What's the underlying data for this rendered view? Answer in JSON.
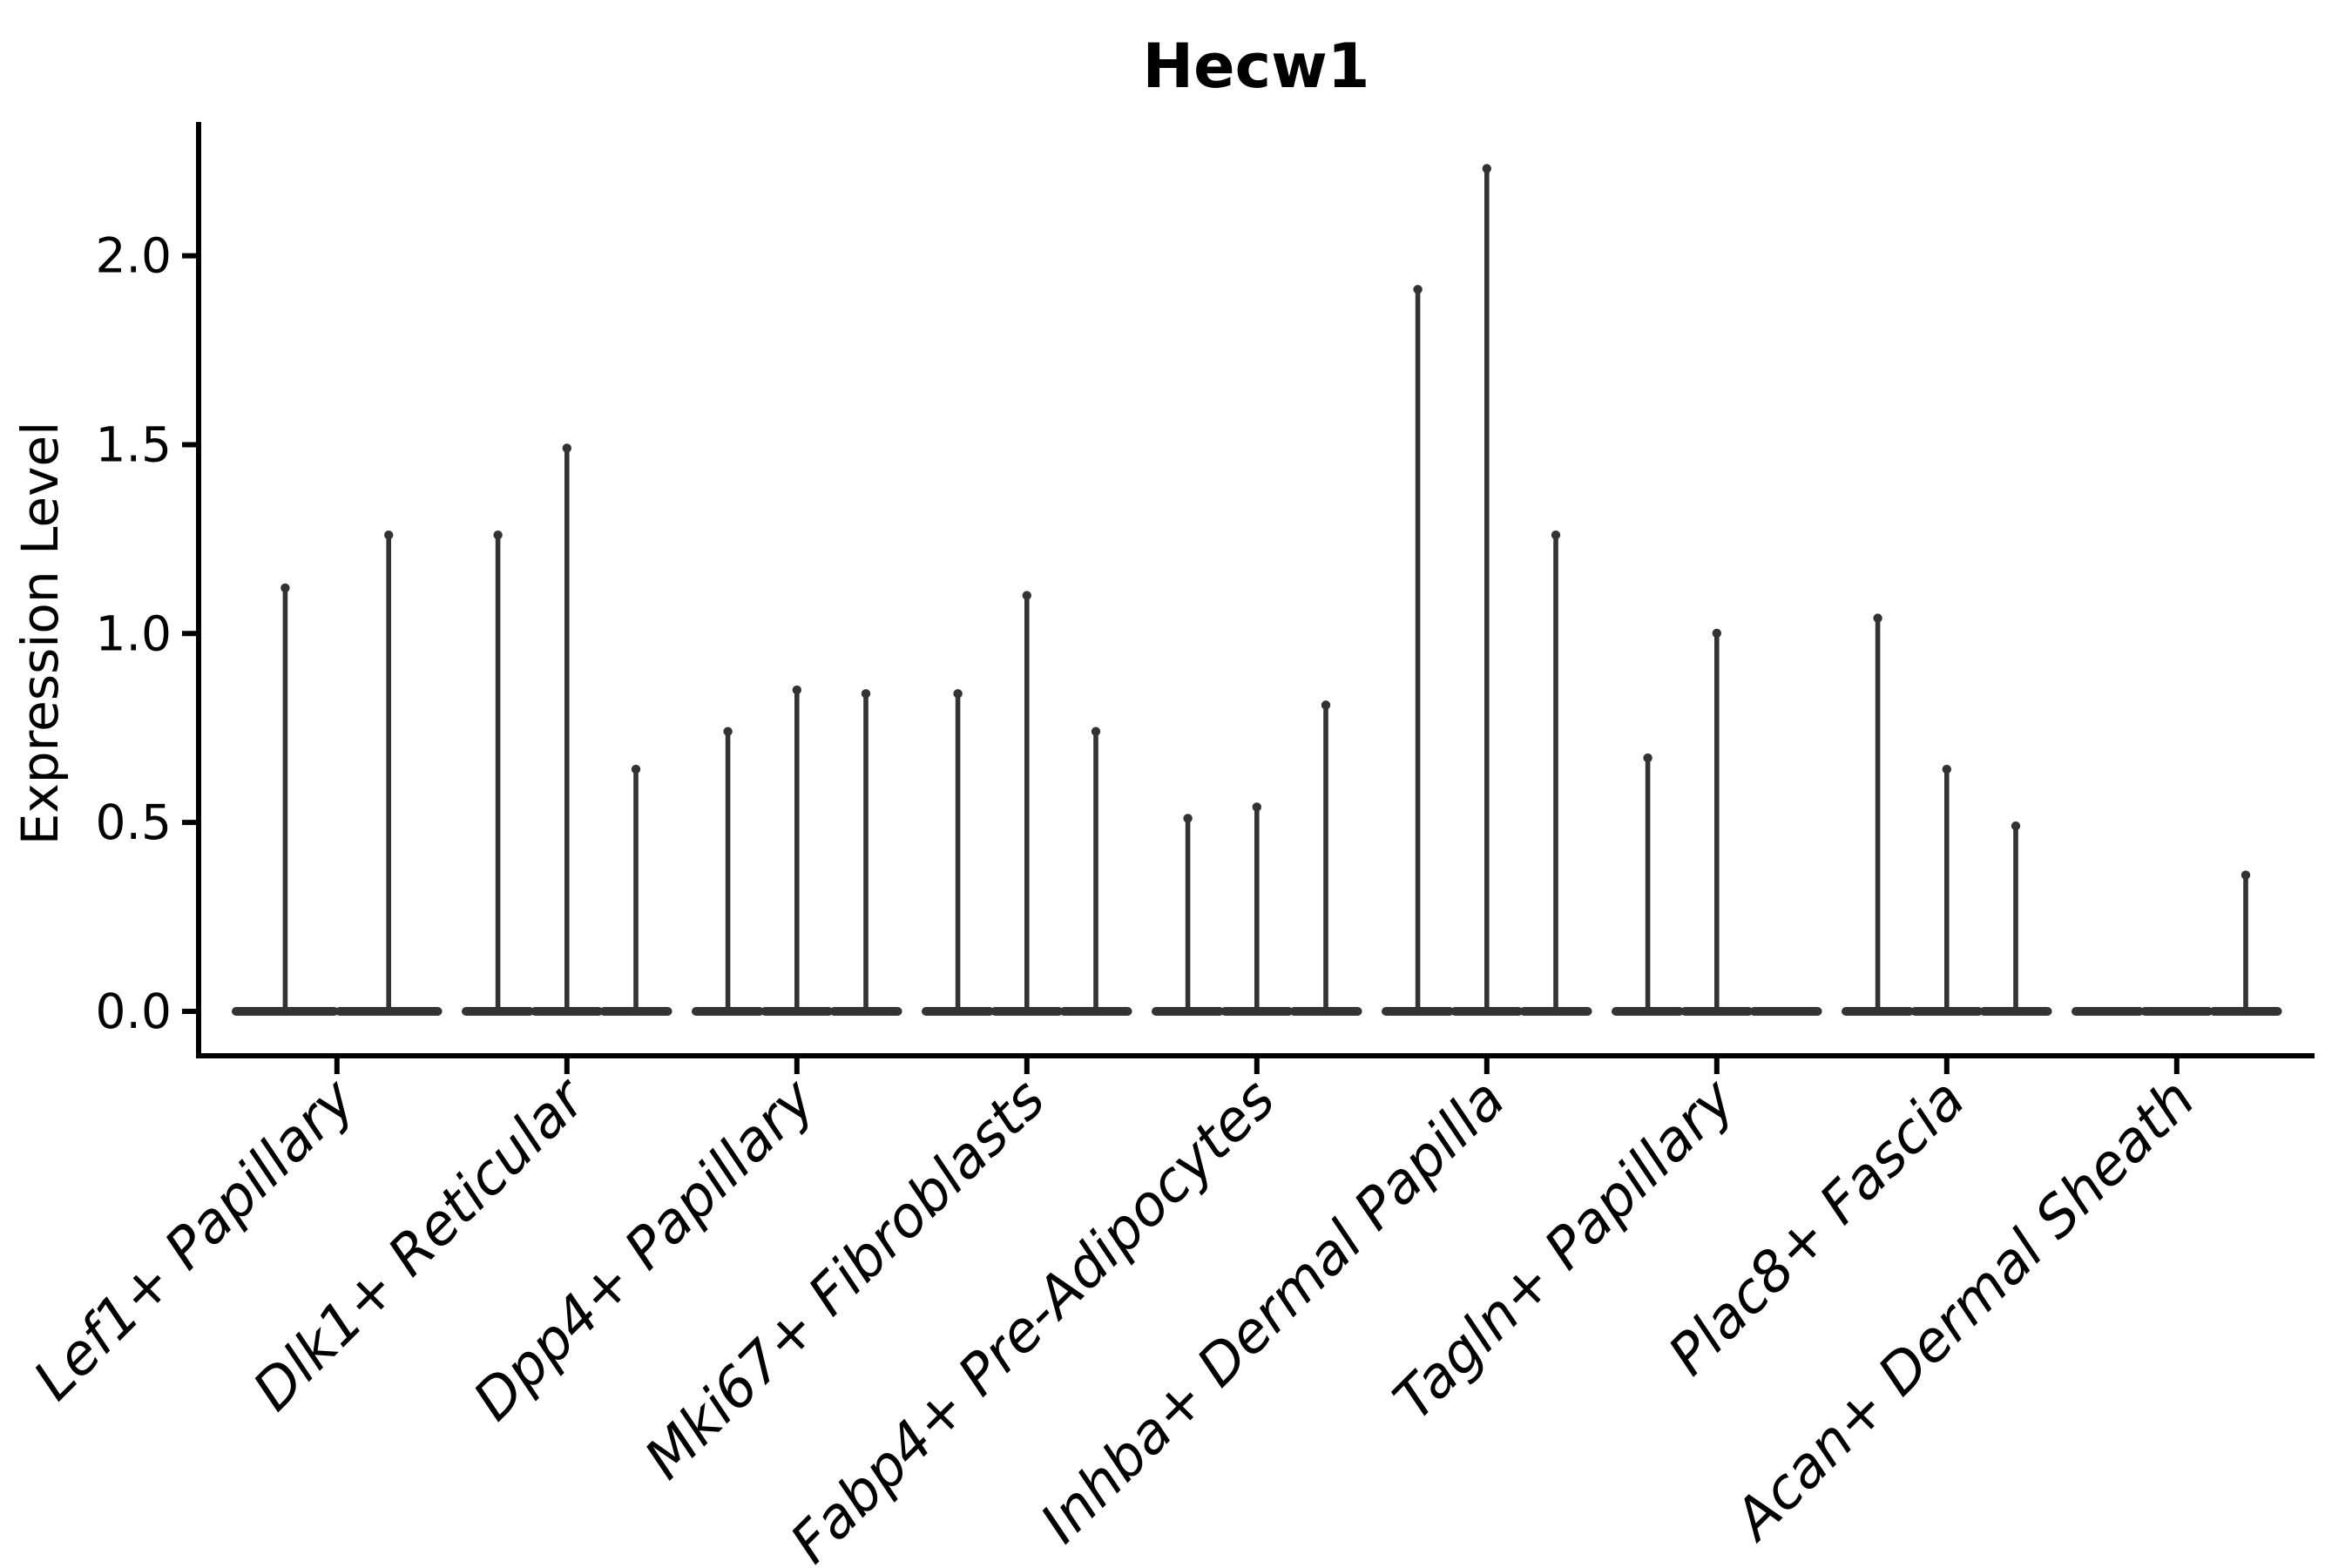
{
  "page": {
    "background": "#ffffff"
  },
  "chart_data": {
    "type": "violin",
    "title": "Hecw1",
    "xlabel": "",
    "ylabel": "Expression Level",
    "ylim": [
      0,
      2.35
    ],
    "yticks": [
      0.0,
      0.5,
      1.0,
      1.5,
      2.0
    ],
    "grid": false,
    "legend": "none",
    "violin_color": "#333333",
    "axis_color": "#000000",
    "categories": [
      {
        "label": "Lef1+ Papillary",
        "violins": [
          1.13,
          1.27
        ]
      },
      {
        "label": "Dlk1+ Reticular",
        "violins": [
          1.27,
          1.5,
          0.65
        ]
      },
      {
        "label": "Dpp4+ Papillary",
        "violins": [
          0.75,
          0.86,
          0.85
        ]
      },
      {
        "label": "Mki67+ Fibroblasts",
        "violins": [
          0.85,
          1.11,
          0.75
        ]
      },
      {
        "label": "Fabp4+ Pre-Adipocytes",
        "violins": [
          0.52,
          0.55,
          0.82
        ]
      },
      {
        "label": "Inhba+ Dermal Papilla",
        "violins": [
          1.92,
          2.24,
          1.27
        ]
      },
      {
        "label": "Tagln+ Papillary",
        "violins": [
          0.68,
          1.01,
          0.0
        ]
      },
      {
        "label": "Plac8+ Fascia",
        "violins": [
          1.05,
          0.65,
          0.5
        ]
      },
      {
        "label": "Acan+ Dermal Sheath",
        "violins": [
          0.0,
          0.0,
          0.37
        ]
      }
    ]
  }
}
